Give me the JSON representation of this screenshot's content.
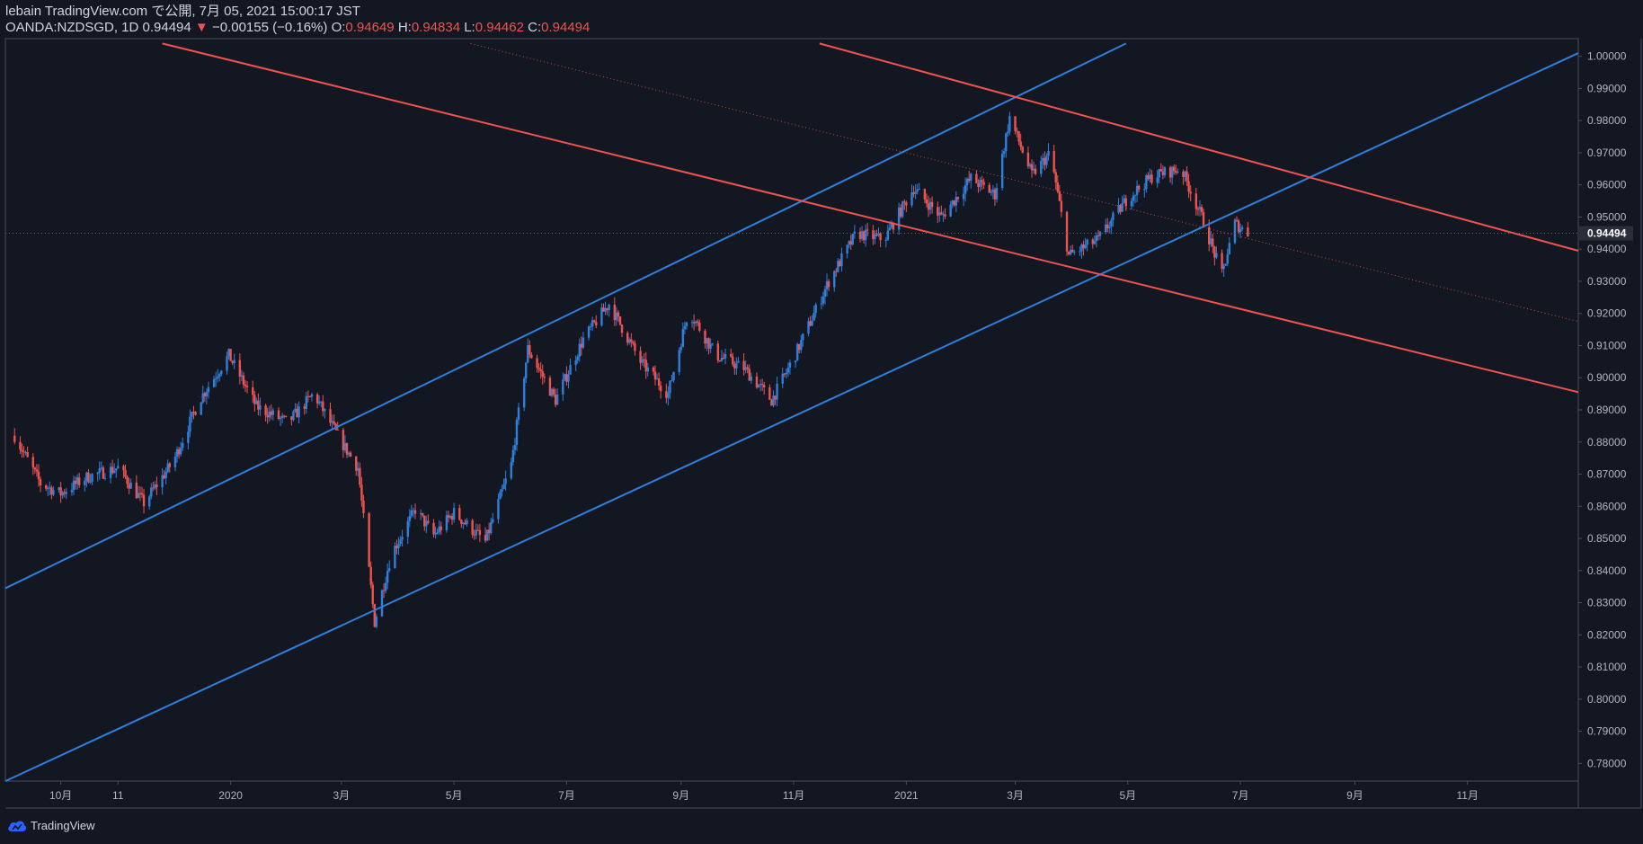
{
  "header": {
    "line1": "lebain TradingView.com で公開, 7月 05, 2021 15:00:17 JST",
    "symbol": "OANDA:NZDSGD, 1D 0.94494",
    "arrow": "▼",
    "change": "−0.00155 (−0.16%)",
    "o_label": "O:",
    "o_value": "0.94649",
    "h_label": "H:",
    "h_value": "0.94834",
    "l_label": "L:",
    "l_value": "0.94462",
    "c_label": "C:",
    "c_value": "0.94494"
  },
  "footer": {
    "brand": "TradingView"
  },
  "colors": {
    "background": "#131722",
    "up": "#2f7fdc",
    "down": "#ef5350",
    "channel_up": "#2f7fdc",
    "channel_down": "#ef5350",
    "price_label_bg": "#2a2e39"
  },
  "chart_data": {
    "type": "candlestick",
    "symbol": "OANDA:NZDSGD",
    "timeframe": "1D",
    "x_range": [
      "2019-09-01",
      "2021-12-31"
    ],
    "y_range": [
      0.7745,
      1.0055
    ],
    "y_ticks": [
      "1.00000",
      "0.99000",
      "0.98000",
      "0.97000",
      "0.96000",
      "0.95000",
      "0.94000",
      "0.93000",
      "0.92000",
      "0.91000",
      "0.90000",
      "0.89000",
      "0.88000",
      "0.87000",
      "0.86000",
      "0.85000",
      "0.84000",
      "0.83000",
      "0.82000",
      "0.81000",
      "0.80000",
      "0.79000",
      "0.78000"
    ],
    "x_ticks": [
      {
        "date": "2019-10-01",
        "label": "10月"
      },
      {
        "date": "2019-11-01",
        "label": "11"
      },
      {
        "date": "2020-01-01",
        "label": "2020"
      },
      {
        "date": "2020-03-01",
        "label": "3月"
      },
      {
        "date": "2020-05-01",
        "label": "5月"
      },
      {
        "date": "2020-07-01",
        "label": "7月"
      },
      {
        "date": "2020-09-01",
        "label": "9月"
      },
      {
        "date": "2020-11-01",
        "label": "11月"
      },
      {
        "date": "2021-01-01",
        "label": "2021"
      },
      {
        "date": "2021-03-01",
        "label": "3月"
      },
      {
        "date": "2021-05-01",
        "label": "5月"
      },
      {
        "date": "2021-07-01",
        "label": "7月"
      },
      {
        "date": "2021-09-01",
        "label": "9月"
      },
      {
        "date": "2021-11-01",
        "label": "11月"
      }
    ],
    "last_price": "0.94494",
    "price_path": [
      [
        "2019-09-06",
        0.882
      ],
      [
        "2019-09-20",
        0.867
      ],
      [
        "2019-10-01",
        0.864
      ],
      [
        "2019-10-15",
        0.869
      ],
      [
        "2019-11-01",
        0.872
      ],
      [
        "2019-11-15",
        0.861
      ],
      [
        "2019-12-01",
        0.874
      ],
      [
        "2019-12-15",
        0.893
      ],
      [
        "2019-12-31",
        0.907
      ],
      [
        "2020-01-15",
        0.891
      ],
      [
        "2020-02-01",
        0.886
      ],
      [
        "2020-02-15",
        0.895
      ],
      [
        "2020-03-01",
        0.88
      ],
      [
        "2020-03-10",
        0.872
      ],
      [
        "2020-03-19",
        0.824
      ],
      [
        "2020-03-28",
        0.845
      ],
      [
        "2020-04-10",
        0.859
      ],
      [
        "2020-04-20",
        0.851
      ],
      [
        "2020-05-01",
        0.858
      ],
      [
        "2020-05-18",
        0.849
      ],
      [
        "2020-06-01",
        0.873
      ],
      [
        "2020-06-10",
        0.909
      ],
      [
        "2020-06-25",
        0.893
      ],
      [
        "2020-07-10",
        0.912
      ],
      [
        "2020-07-24",
        0.923
      ],
      [
        "2020-08-10",
        0.905
      ],
      [
        "2020-08-25",
        0.895
      ],
      [
        "2020-09-05",
        0.921
      ],
      [
        "2020-09-20",
        0.907
      ],
      [
        "2020-10-05",
        0.903
      ],
      [
        "2020-10-20",
        0.893
      ],
      [
        "2020-11-01",
        0.906
      ],
      [
        "2020-11-20",
        0.93
      ],
      [
        "2020-12-05",
        0.945
      ],
      [
        "2020-12-20",
        0.943
      ],
      [
        "2021-01-05",
        0.959
      ],
      [
        "2021-01-20",
        0.95
      ],
      [
        "2021-02-05",
        0.962
      ],
      [
        "2021-02-18",
        0.957
      ],
      [
        "2021-02-26",
        0.981
      ],
      [
        "2021-03-10",
        0.963
      ],
      [
        "2021-03-20",
        0.97
      ],
      [
        "2021-03-30",
        0.938
      ],
      [
        "2021-04-15",
        0.943
      ],
      [
        "2021-05-01",
        0.956
      ],
      [
        "2021-05-15",
        0.963
      ],
      [
        "2021-05-30",
        0.965
      ],
      [
        "2021-06-10",
        0.95
      ],
      [
        "2021-06-21",
        0.932
      ],
      [
        "2021-06-28",
        0.948
      ],
      [
        "2021-07-05",
        0.945
      ]
    ],
    "trendlines": [
      {
        "name": "channel-upper-blue",
        "color": "blue",
        "style": "solid",
        "from": [
          "2019-09-01",
          0.8345
        ],
        "to": [
          "2021-04-30",
          1.004
        ]
      },
      {
        "name": "channel-lower-blue",
        "color": "blue",
        "style": "solid",
        "from": [
          "2019-09-01",
          0.7745
        ],
        "to": [
          "2021-12-31",
          1.001
        ]
      },
      {
        "name": "channel-upper-red",
        "color": "red",
        "style": "solid",
        "from": [
          "2020-11-15",
          1.004
        ],
        "to": [
          "2021-12-31",
          0.9395
        ]
      },
      {
        "name": "channel-lower-red",
        "color": "red",
        "style": "solid",
        "from": [
          "2019-11-25",
          1.004
        ],
        "to": [
          "2021-12-31",
          0.8955
        ]
      },
      {
        "name": "channel-mid-red",
        "color": "red",
        "style": "dotted",
        "from": [
          "2020-05-10",
          1.004
        ],
        "to": [
          "2021-12-31",
          0.9175
        ]
      }
    ]
  }
}
